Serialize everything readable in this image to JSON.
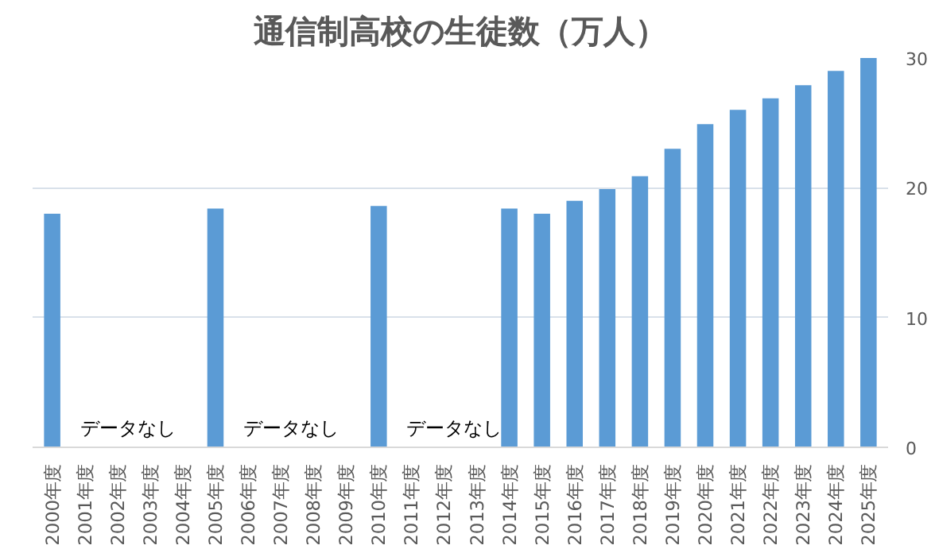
{
  "chart_data": {
    "type": "bar",
    "title": "通信制高校の生徒数（万人）",
    "categories": [
      "2000年度",
      "2001年度",
      "2002年度",
      "2003年度",
      "2004年度",
      "2005年度",
      "2006年度",
      "2007年度",
      "2008年度",
      "2009年度",
      "2010年度",
      "2011年度",
      "2012年度",
      "2013年度",
      "2014年度",
      "2015年度",
      "2016年度",
      "2017年度",
      "2018年度",
      "2019年度",
      "2020年度",
      "2021年度",
      "2022年度",
      "2023年度",
      "2024年度",
      "2025年度"
    ],
    "values": [
      18.0,
      null,
      null,
      null,
      null,
      18.4,
      null,
      null,
      null,
      null,
      18.6,
      null,
      null,
      null,
      18.4,
      18.0,
      19.0,
      19.9,
      20.9,
      23.0,
      24.9,
      26.0,
      26.9,
      27.9,
      29.0,
      30.0
    ],
    "color": "#5b9bd5",
    "ylim": [
      0,
      30
    ],
    "yticks": [
      0,
      10,
      20,
      30
    ],
    "grid": "y",
    "annotations": [
      "データなし",
      "データなし",
      "データなし"
    ]
  }
}
